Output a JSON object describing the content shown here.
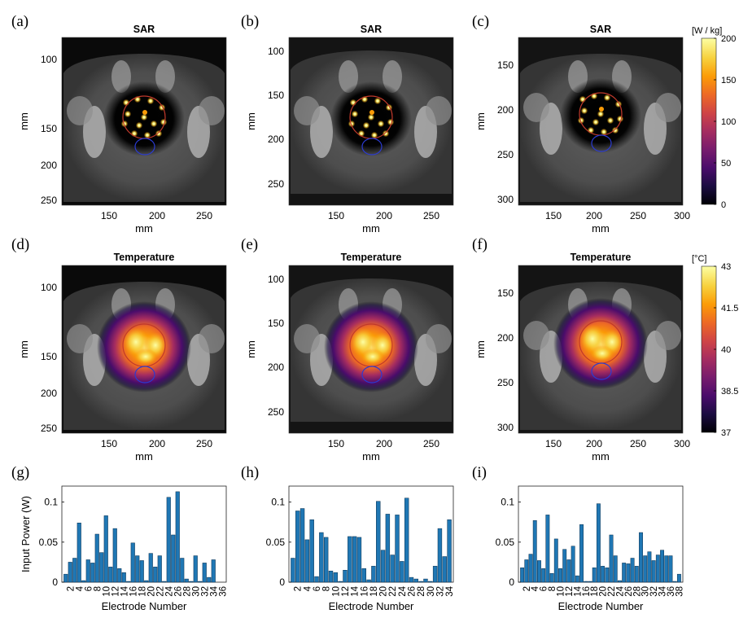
{
  "colors": {
    "bar": "#1f77b4",
    "bar_edge": "#0b2f4d",
    "ct_background": "#4a4a4a",
    "ctv_contour": "#c0392b",
    "rectum_contour": "#2b3bd1",
    "inferno": [
      "#000004",
      "#1b0c41",
      "#4a0c6b",
      "#781c6d",
      "#a52c60",
      "#cf4446",
      "#ed6925",
      "#fb9b06",
      "#f7d13d",
      "#fcffa4"
    ]
  },
  "panels": [
    {
      "id": "a",
      "label": "(a)",
      "title": "SAR",
      "xlabel": "mm",
      "ylabel": "mm",
      "xticks": [
        "150",
        "200",
        "250"
      ],
      "yticks": [
        "100",
        "150",
        "200",
        "250"
      ],
      "map": "sar",
      "anatomy": 0
    },
    {
      "id": "b",
      "label": "(b)",
      "title": "SAR",
      "xlabel": "mm",
      "ylabel": "mm",
      "xticks": [
        "150",
        "200",
        "250"
      ],
      "yticks": [
        "100",
        "150",
        "200",
        "250"
      ],
      "map": "sar",
      "anatomy": 1
    },
    {
      "id": "c",
      "label": "(c)",
      "title": "SAR",
      "xlabel": "mm",
      "ylabel": "mm",
      "xticks": [
        "150",
        "200",
        "250",
        "300"
      ],
      "yticks": [
        "150",
        "200",
        "250",
        "300"
      ],
      "map": "sar",
      "anatomy": 2
    },
    {
      "id": "d",
      "label": "(d)",
      "title": "Temperature",
      "xlabel": "mm",
      "ylabel": "mm",
      "xticks": [
        "150",
        "200",
        "250"
      ],
      "yticks": [
        "100",
        "150",
        "200",
        "250"
      ],
      "map": "temp",
      "anatomy": 0
    },
    {
      "id": "e",
      "label": "(e)",
      "title": "Temperature",
      "xlabel": "mm",
      "ylabel": "mm",
      "xticks": [
        "150",
        "200",
        "250"
      ],
      "yticks": [
        "100",
        "150",
        "200",
        "250"
      ],
      "map": "temp",
      "anatomy": 1
    },
    {
      "id": "f",
      "label": "(f)",
      "title": "Temperature",
      "xlabel": "mm",
      "ylabel": "mm",
      "xticks": [
        "150",
        "200",
        "250",
        "300"
      ],
      "yticks": [
        "150",
        "200",
        "250",
        "300"
      ],
      "map": "temp",
      "anatomy": 2
    }
  ],
  "colorbars": {
    "sar": {
      "unit": "[W / kg]",
      "ticks": [
        "200",
        "150",
        "100",
        "50",
        "0"
      ],
      "range": [
        0,
        200
      ]
    },
    "temp": {
      "unit": "[°C]",
      "ticks": [
        "43",
        "41.5",
        "40",
        "38.5",
        "37"
      ],
      "range": [
        37,
        43
      ]
    }
  },
  "chart_data": [
    {
      "type": "bar",
      "panel": "(g)",
      "xlabel": "Electrode Number",
      "ylabel": "Input Power (W)",
      "ylim": [
        0,
        0.12
      ],
      "yticks": [
        "0",
        "0.05",
        "0.1"
      ],
      "tick_labels": [
        "2",
        "4",
        "6",
        "8",
        "10",
        "12",
        "14",
        "16",
        "18",
        "20",
        "22",
        "24",
        "26",
        "28",
        "30",
        "32",
        "34",
        "36"
      ],
      "categories": [
        1,
        2,
        3,
        4,
        5,
        6,
        7,
        8,
        9,
        10,
        11,
        12,
        13,
        14,
        15,
        16,
        17,
        18,
        19,
        20,
        21,
        22,
        23,
        24,
        25,
        26,
        27,
        28,
        29,
        30,
        31,
        32,
        33,
        34,
        35,
        36
      ],
      "values": [
        0.01,
        0.025,
        0.03,
        0.074,
        0.002,
        0.028,
        0.024,
        0.06,
        0.037,
        0.083,
        0.019,
        0.067,
        0.017,
        0.012,
        0.001,
        0.049,
        0.033,
        0.027,
        0.002,
        0.036,
        0.019,
        0.033,
        0.001,
        0.106,
        0.059,
        0.113,
        0.03,
        0.004,
        0.001,
        0.033,
        0.001,
        0.024,
        0.006,
        0.028,
        0.0,
        0.0
      ]
    },
    {
      "type": "bar",
      "panel": "(h)",
      "xlabel": "Electrode Number",
      "ylabel": "",
      "ylim": [
        0,
        0.12
      ],
      "yticks": [
        "0",
        "0.05",
        "0.1"
      ],
      "tick_labels": [
        "2",
        "4",
        "6",
        "8",
        "10",
        "12",
        "14",
        "16",
        "18",
        "20",
        "22",
        "24",
        "26",
        "28",
        "30",
        "32",
        "34"
      ],
      "categories": [
        1,
        2,
        3,
        4,
        5,
        6,
        7,
        8,
        9,
        10,
        11,
        12,
        13,
        14,
        15,
        16,
        17,
        18,
        19,
        20,
        21,
        22,
        23,
        24,
        25,
        26,
        27,
        28,
        29,
        30,
        31,
        32,
        33,
        34
      ],
      "values": [
        0.03,
        0.089,
        0.092,
        0.053,
        0.078,
        0.007,
        0.062,
        0.056,
        0.014,
        0.012,
        0.001,
        0.015,
        0.057,
        0.057,
        0.056,
        0.017,
        0.003,
        0.02,
        0.101,
        0.04,
        0.085,
        0.034,
        0.084,
        0.026,
        0.105,
        0.006,
        0.004,
        0.001,
        0.004,
        0.001,
        0.02,
        0.067,
        0.032,
        0.078
      ]
    },
    {
      "type": "bar",
      "panel": "(i)",
      "xlabel": "Electrode Number",
      "ylabel": "",
      "ylim": [
        0,
        0.12
      ],
      "yticks": [
        "0",
        "0.05",
        "0.1"
      ],
      "tick_labels": [
        "2",
        "4",
        "6",
        "8",
        "10",
        "12",
        "14",
        "16",
        "18",
        "20",
        "22",
        "24",
        "26",
        "28",
        "30",
        "32",
        "34",
        "36",
        "38"
      ],
      "categories": [
        1,
        2,
        3,
        4,
        5,
        6,
        7,
        8,
        9,
        10,
        11,
        12,
        13,
        14,
        15,
        16,
        17,
        18,
        19,
        20,
        21,
        22,
        23,
        24,
        25,
        26,
        27,
        28,
        29,
        30,
        31,
        32,
        33,
        34,
        35,
        36,
        37,
        38
      ],
      "values": [
        0.018,
        0.028,
        0.035,
        0.077,
        0.027,
        0.017,
        0.084,
        0.011,
        0.054,
        0.017,
        0.041,
        0.028,
        0.045,
        0.008,
        0.072,
        0.001,
        0.001,
        0.018,
        0.098,
        0.02,
        0.018,
        0.059,
        0.033,
        0.002,
        0.024,
        0.023,
        0.03,
        0.02,
        0.062,
        0.033,
        0.038,
        0.027,
        0.034,
        0.04,
        0.033,
        0.033,
        0.001,
        0.01
      ]
    }
  ]
}
